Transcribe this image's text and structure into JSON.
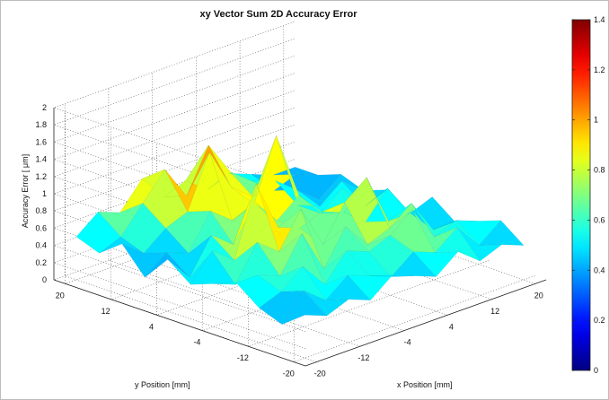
{
  "chart_data": {
    "type": "surface",
    "title": "xy Vector Sum 2D Accuracy Error",
    "xlabel": "x Position [mm]",
    "ylabel": "y Position [mm]",
    "zlabel": "Accuracy Error [ μm]",
    "x_ticks": [
      "-20",
      "-12",
      "-4",
      "4",
      "12",
      "20"
    ],
    "y_ticks": [
      "20",
      "12",
      "4",
      "-4",
      "-12",
      "-20"
    ],
    "z_ticks": [
      "0",
      "0.2",
      "0.4",
      "0.6",
      "0.8",
      "1",
      "1.2",
      "1.4",
      "1.6",
      "1.8",
      "2"
    ],
    "zlim": [
      0,
      2
    ],
    "colorbar_ticks": [
      "0",
      "0.2",
      "0.4",
      "0.6",
      "0.8",
      "1",
      "1.2",
      "1.4"
    ],
    "color_range": [
      0,
      1.4
    ],
    "colormap": "jet",
    "grid": true,
    "x": [
      -20,
      -16,
      -12,
      -8,
      -4,
      0,
      4,
      8,
      12,
      16,
      20
    ],
    "y": [
      20,
      16,
      12,
      8,
      4,
      0,
      -4,
      -8,
      -12,
      -16,
      -20
    ],
    "z": [
      [
        0.5,
        0.7,
        0.6,
        0.9,
        0.6,
        0.7,
        0.5,
        0.6,
        0.5,
        0.4,
        0.4
      ],
      [
        0.4,
        0.5,
        0.8,
        1.1,
        0.7,
        1.2,
        0.8,
        0.6,
        0.4,
        0.5,
        0.4
      ],
      [
        0.6,
        0.4,
        0.6,
        0.7,
        1.3,
        0.8,
        0.6,
        0.7,
        0.5,
        0.3,
        0.5
      ],
      [
        0.3,
        0.5,
        0.4,
        0.8,
        0.6,
        0.7,
        1.4,
        0.5,
        0.4,
        0.6,
        0.4
      ],
      [
        0.6,
        0.3,
        0.7,
        0.5,
        0.9,
        0.6,
        0.8,
        0.5,
        0.7,
        0.4,
        0.5
      ],
      [
        0.4,
        0.7,
        0.5,
        1.3,
        0.7,
        0.6,
        0.7,
        0.6,
        0.4,
        0.7,
        0.3
      ],
      [
        0.5,
        0.4,
        0.8,
        0.6,
        1.0,
        0.5,
        0.9,
        1.1,
        0.5,
        0.5,
        0.6
      ],
      [
        0.6,
        0.6,
        0.5,
        0.9,
        0.4,
        0.8,
        0.5,
        0.6,
        0.8,
        0.4,
        0.4
      ],
      [
        0.4,
        0.5,
        0.7,
        0.4,
        0.7,
        0.6,
        0.7,
        0.9,
        0.5,
        0.6,
        0.5
      ],
      [
        0.3,
        0.6,
        0.4,
        0.6,
        0.5,
        0.4,
        0.6,
        0.5,
        0.7,
        0.4,
        0.6
      ],
      [
        0.5,
        0.4,
        0.5,
        0.4,
        0.6,
        0.5,
        0.4,
        0.6,
        0.4,
        0.5,
        0.4
      ]
    ]
  }
}
